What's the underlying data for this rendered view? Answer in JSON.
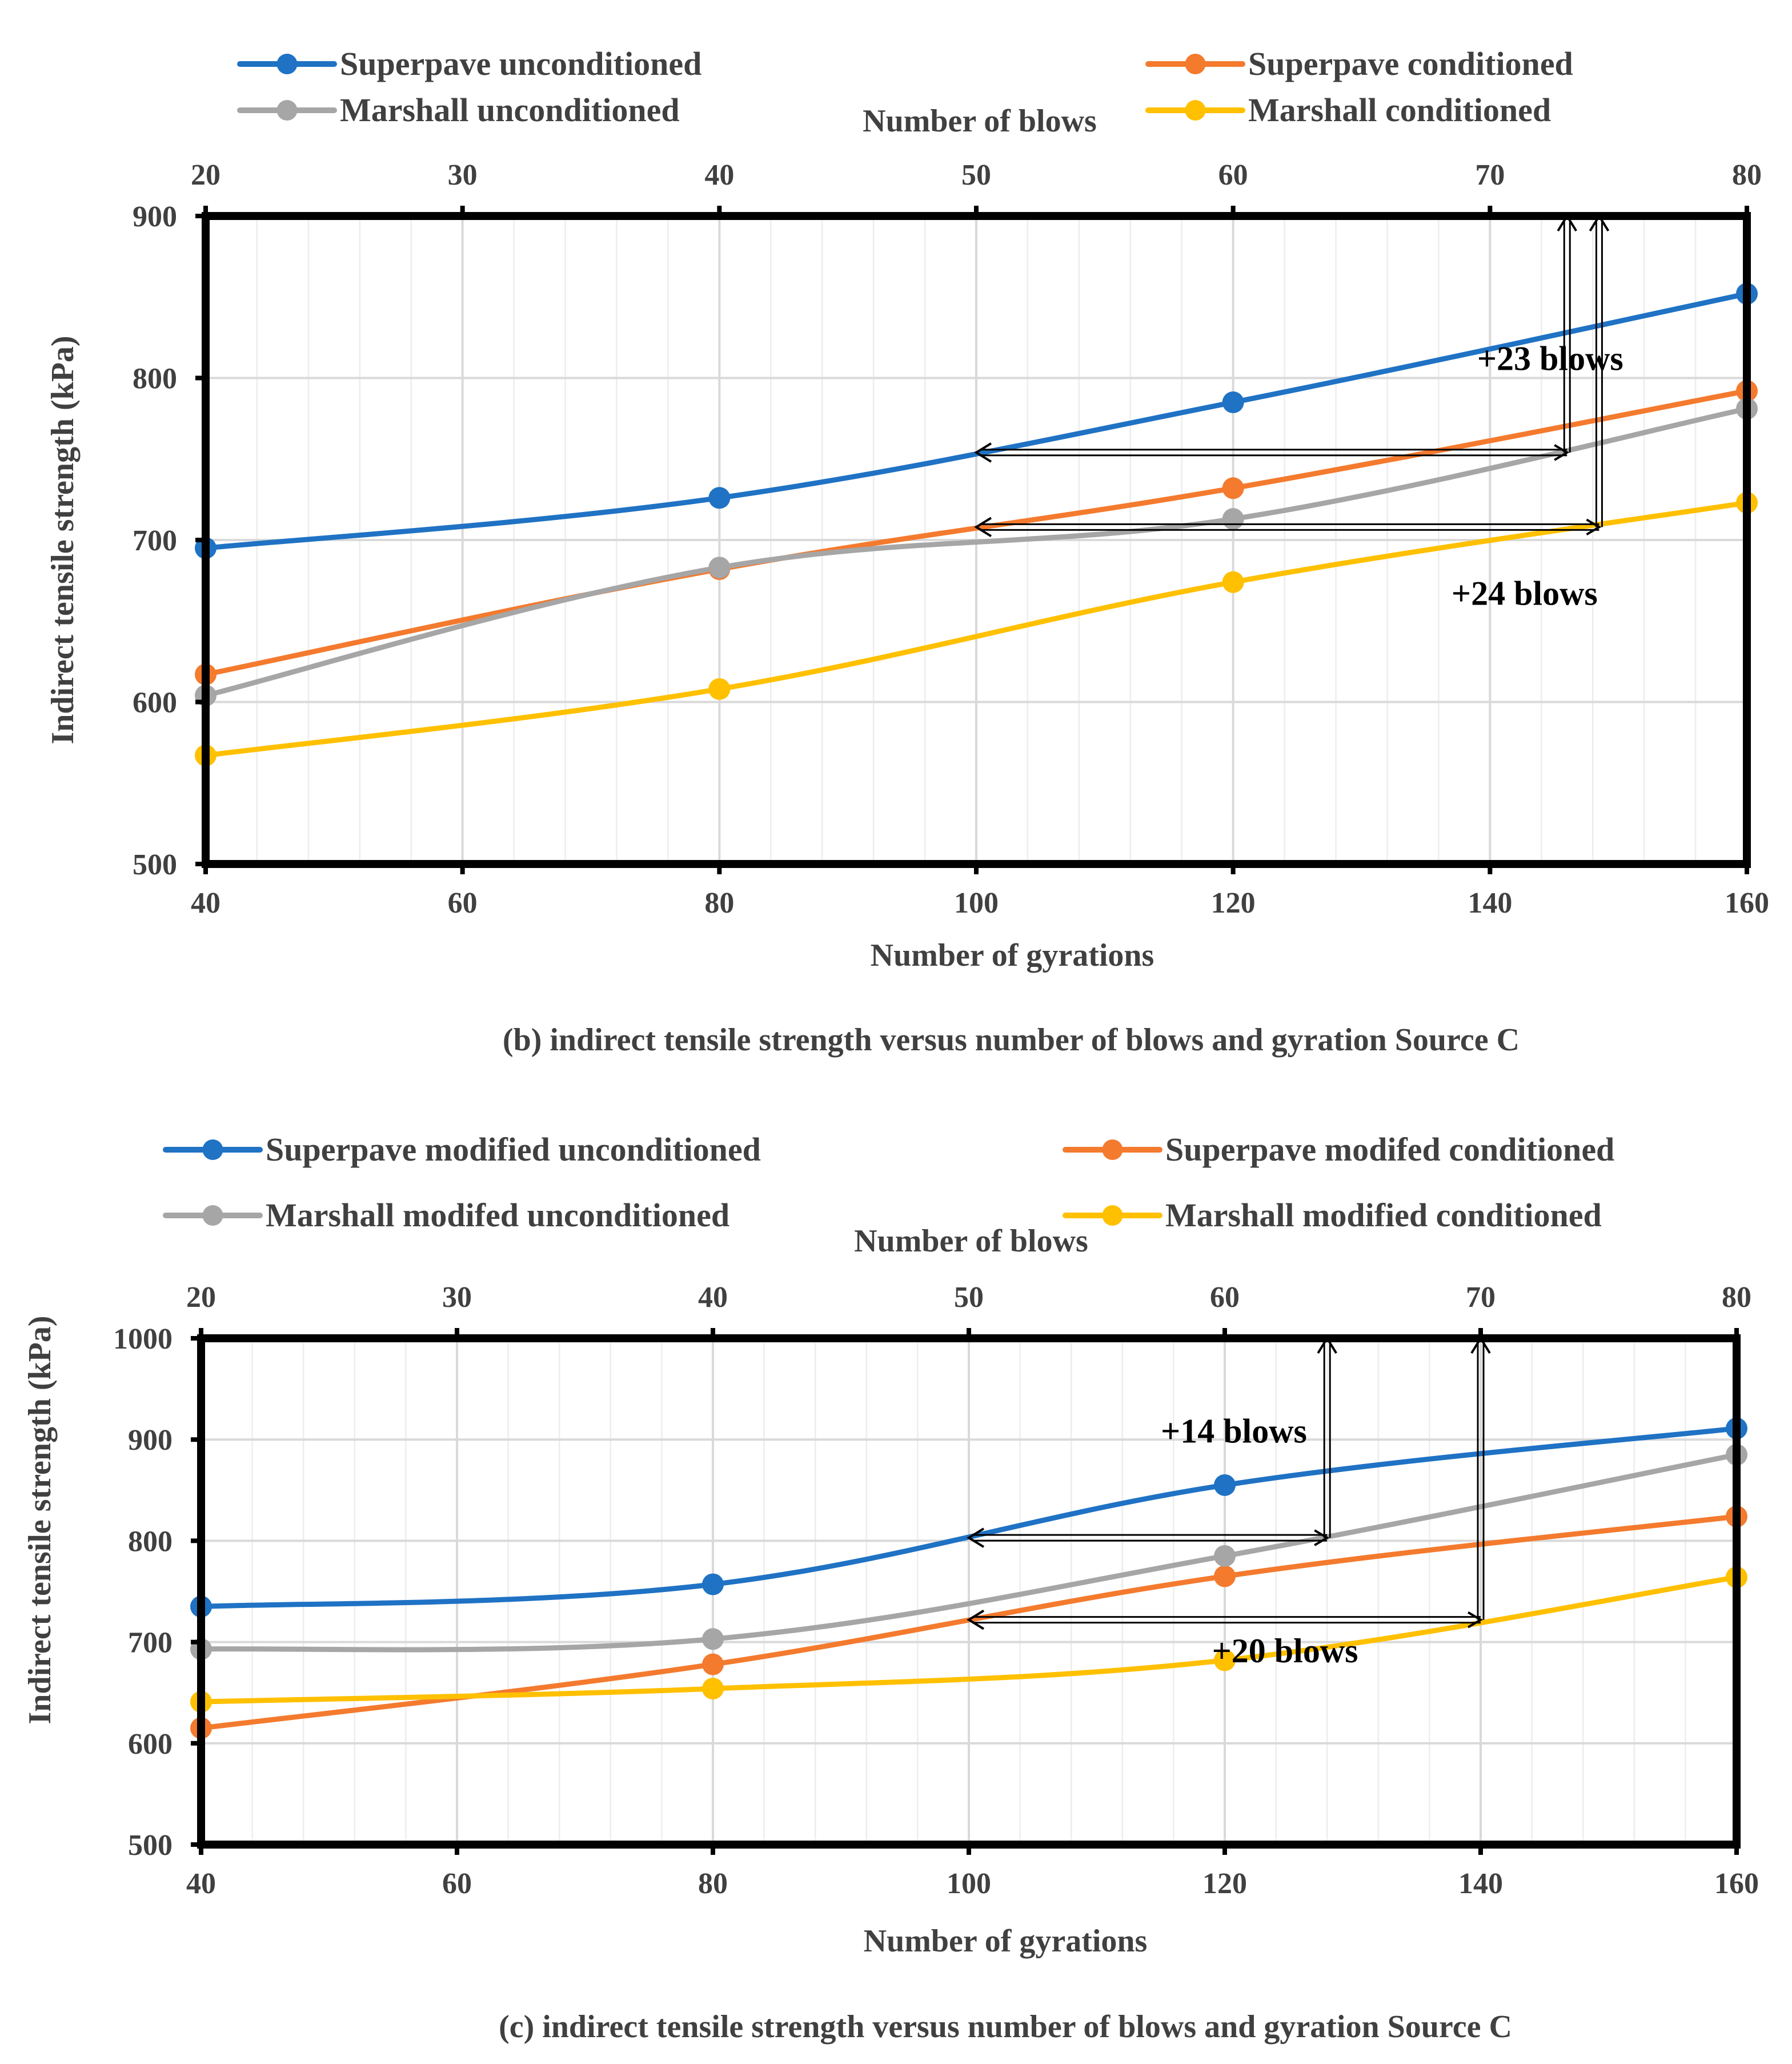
{
  "colors": {
    "blue": "#1F72C4",
    "orange": "#F47A2E",
    "gray": "#A6A6A6",
    "yellow": "#FFC000",
    "axis": "#000000",
    "grid": "#D9D9D9",
    "minor_grid": "#EDEDED",
    "text": "#404040"
  },
  "chart_data": [
    {
      "type": "line",
      "caption": "(b) indirect tensile strength versus number of blows and gyration Source C",
      "xlabel": "Number of gyrations",
      "x2label": "Number of blows",
      "ylabel": "Indirect tensile strength (kPa)",
      "xlim": [
        40,
        160
      ],
      "x2lim": [
        20,
        80
      ],
      "ylim": [
        500,
        900
      ],
      "xticks": [
        "40",
        "60",
        "80",
        "100",
        "120",
        "140",
        "160"
      ],
      "x2ticks": [
        "20",
        "30",
        "40",
        "50",
        "60",
        "70",
        "80"
      ],
      "yticks": [
        "500",
        "600",
        "700",
        "800",
        "900"
      ],
      "grid": true,
      "legend_position": "top",
      "series": [
        {
          "name": "Superpave unconditioned",
          "color": "#1F72C4",
          "x": [
            40,
            80,
            120,
            160
          ],
          "values": [
            695,
            726,
            785,
            852
          ]
        },
        {
          "name": "Superpave conditioned",
          "color": "#F47A2E",
          "x": [
            40,
            80,
            120,
            160
          ],
          "values": [
            617,
            682,
            732,
            792
          ]
        },
        {
          "name": "Marshall unconditioned",
          "color": "#A6A6A6",
          "x": [
            40,
            80,
            120,
            160
          ],
          "values": [
            604,
            683,
            713,
            781
          ]
        },
        {
          "name": "Marshall conditioned",
          "color": "#FFC000",
          "x": [
            40,
            80,
            120,
            160
          ],
          "values": [
            567,
            608,
            674,
            723
          ]
        }
      ],
      "arrows": [
        {
          "from_x": 100,
          "to_x": 146,
          "y": 754,
          "top_y": 900
        },
        {
          "from_x": 100,
          "to_x": 148.5,
          "y": 708,
          "top_y": 900
        }
      ],
      "annotations": [
        {
          "text": "+23 blows",
          "x": 139,
          "y": 805
        },
        {
          "text": "+24 blows",
          "x": 137,
          "y": 660
        }
      ]
    },
    {
      "type": "line",
      "caption": "(c) indirect tensile strength versus number of blows and gyration Source C",
      "xlabel": "Number of gyrations",
      "x2label": "Number of blows",
      "ylabel": "Indirect tensile strength (kPa)",
      "xlim": [
        40,
        160
      ],
      "x2lim": [
        20,
        80
      ],
      "ylim": [
        500,
        1000
      ],
      "xticks": [
        "40",
        "60",
        "80",
        "100",
        "120",
        "140",
        "160"
      ],
      "x2ticks": [
        "20",
        "30",
        "40",
        "50",
        "60",
        "70",
        "80"
      ],
      "yticks": [
        "500",
        "600",
        "700",
        "800",
        "900",
        "1000"
      ],
      "grid": true,
      "legend_position": "top",
      "series": [
        {
          "name": "Superpave modified unconditioned",
          "color": "#1F72C4",
          "x": [
            40,
            80,
            120,
            160
          ],
          "values": [
            735,
            757,
            855,
            911
          ]
        },
        {
          "name": "Superpave modifed conditioned",
          "color": "#F47A2E",
          "x": [
            40,
            80,
            120,
            160
          ],
          "values": [
            615,
            678,
            765,
            824
          ]
        },
        {
          "name": "Marshall modifed unconditioned",
          "color": "#A6A6A6",
          "x": [
            40,
            80,
            120,
            160
          ],
          "values": [
            693,
            703,
            785,
            885
          ]
        },
        {
          "name": "Marshall modified conditioned",
          "color": "#FFC000",
          "x": [
            40,
            80,
            120,
            160
          ],
          "values": [
            641,
            654,
            682,
            764
          ]
        }
      ],
      "arrows": [
        {
          "from_x": 100,
          "to_x": 128,
          "y": 803,
          "top_y": 1000
        },
        {
          "from_x": 100,
          "to_x": 140,
          "y": 722,
          "top_y": 1000
        }
      ],
      "annotations": [
        {
          "text": "+14 blows",
          "x": 115,
          "y": 897
        },
        {
          "text": "+20 blows",
          "x": 119,
          "y": 680
        }
      ]
    }
  ]
}
